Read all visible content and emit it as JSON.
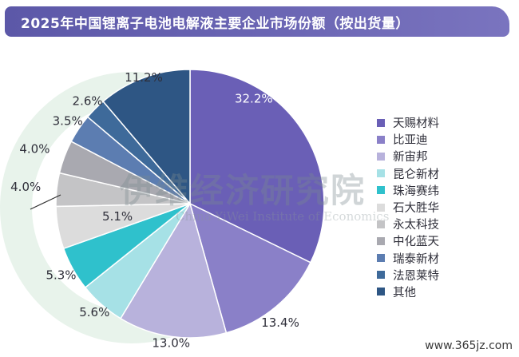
{
  "header": {
    "title": "2025年中国锂离子电池电解液主要企业市场份额（按出货量）"
  },
  "chart_data": {
    "type": "pie",
    "unit": "%",
    "slices": [
      {
        "name": "天赐材料",
        "value": 32.2,
        "label": "32.2%",
        "color": "#6a5fb6"
      },
      {
        "name": "比亚迪",
        "value": 13.4,
        "label": "13.4%",
        "color": "#8a80c8"
      },
      {
        "name": "新宙邦",
        "value": 13.0,
        "label": "13.0%",
        "color": "#b8b2dc"
      },
      {
        "name": "昆仑新材",
        "value": 5.6,
        "label": "5.6%",
        "color": "#a6e1e6"
      },
      {
        "name": "珠海赛纬",
        "value": 5.3,
        "label": "5.3%",
        "color": "#2fc1cc"
      },
      {
        "name": "石大胜华",
        "value": 5.1,
        "label": "5.1%",
        "color": "#dcdcdc"
      },
      {
        "name": "永太科技",
        "value": 4.0,
        "label": "4.0%",
        "color": "#c4c4c6"
      },
      {
        "name": "中化蓝天",
        "value": 4.0,
        "label": "4.0%",
        "color": "#a9a9b0"
      },
      {
        "name": "瑞泰新材",
        "value": 3.5,
        "label": "3.5%",
        "color": "#5c7db1"
      },
      {
        "name": "法恩莱特",
        "value": 2.6,
        "label": "2.6%",
        "color": "#3e6a9a"
      },
      {
        "name": "其他",
        "value": 11.2,
        "label": "11.2%",
        "color": "#2e5684"
      }
    ],
    "legend_position": "right"
  },
  "watermark": {
    "main": "伊维经济研究院",
    "sub": "China YiWei Institute of Economics"
  },
  "footer": {
    "site": "www.365jz.com"
  }
}
